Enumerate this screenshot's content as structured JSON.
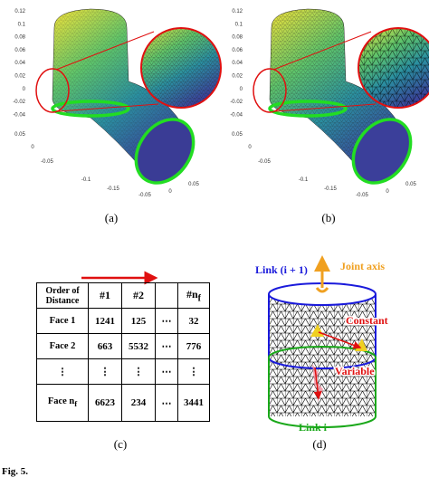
{
  "panels": [
    {
      "label": "(a)",
      "zticks": [
        "0.12",
        "0.1",
        "0.08",
        "0.06",
        "0.04",
        "0.02",
        "0",
        "-0.02",
        "-0.04"
      ],
      "floor_ticks": [
        "0.05",
        "0",
        "-0.05",
        "-0.1",
        "-0.15",
        "-0.05",
        "0",
        "0.05"
      ]
    },
    {
      "label": "(b)",
      "zticks": [
        "0.12",
        "0.1",
        "0.08",
        "0.06",
        "0.04",
        "0.02",
        "0",
        "-0.02",
        "-0.04"
      ],
      "floor_ticks": [
        "0.05",
        "0",
        "-0.05",
        "-0.1",
        "-0.15",
        "-0.05",
        "0",
        "0.05"
      ]
    }
  ],
  "table": {
    "label": "(c)",
    "header": {
      "row_label": "Order of Distance",
      "columns": [
        {
          "text": "#1"
        },
        {
          "text": "#2"
        },
        {
          "text": "#n",
          "sub": "f"
        }
      ]
    },
    "rows": [
      {
        "label": {
          "text": "Face 1"
        },
        "values": [
          1241,
          125,
          "⋯",
          32
        ]
      },
      {
        "label": {
          "text": "Face 2"
        },
        "values": [
          663,
          5532,
          "⋯",
          776
        ]
      },
      {
        "label": {
          "text": "⋮"
        },
        "values": [
          "⋮",
          "⋮",
          "⋯",
          "⋮"
        ]
      },
      {
        "label": {
          "text": "Face n",
          "sub": "f"
        },
        "values": [
          6623,
          234,
          "⋯",
          3441
        ]
      }
    ]
  },
  "diagram": {
    "label": "(d)",
    "link_upper": "Link (i + 1)",
    "joint_axis": "Joint axis",
    "constant": "Constant",
    "variable": "Variable",
    "link_lower": "Link i"
  },
  "caption": "Fig. 5."
}
